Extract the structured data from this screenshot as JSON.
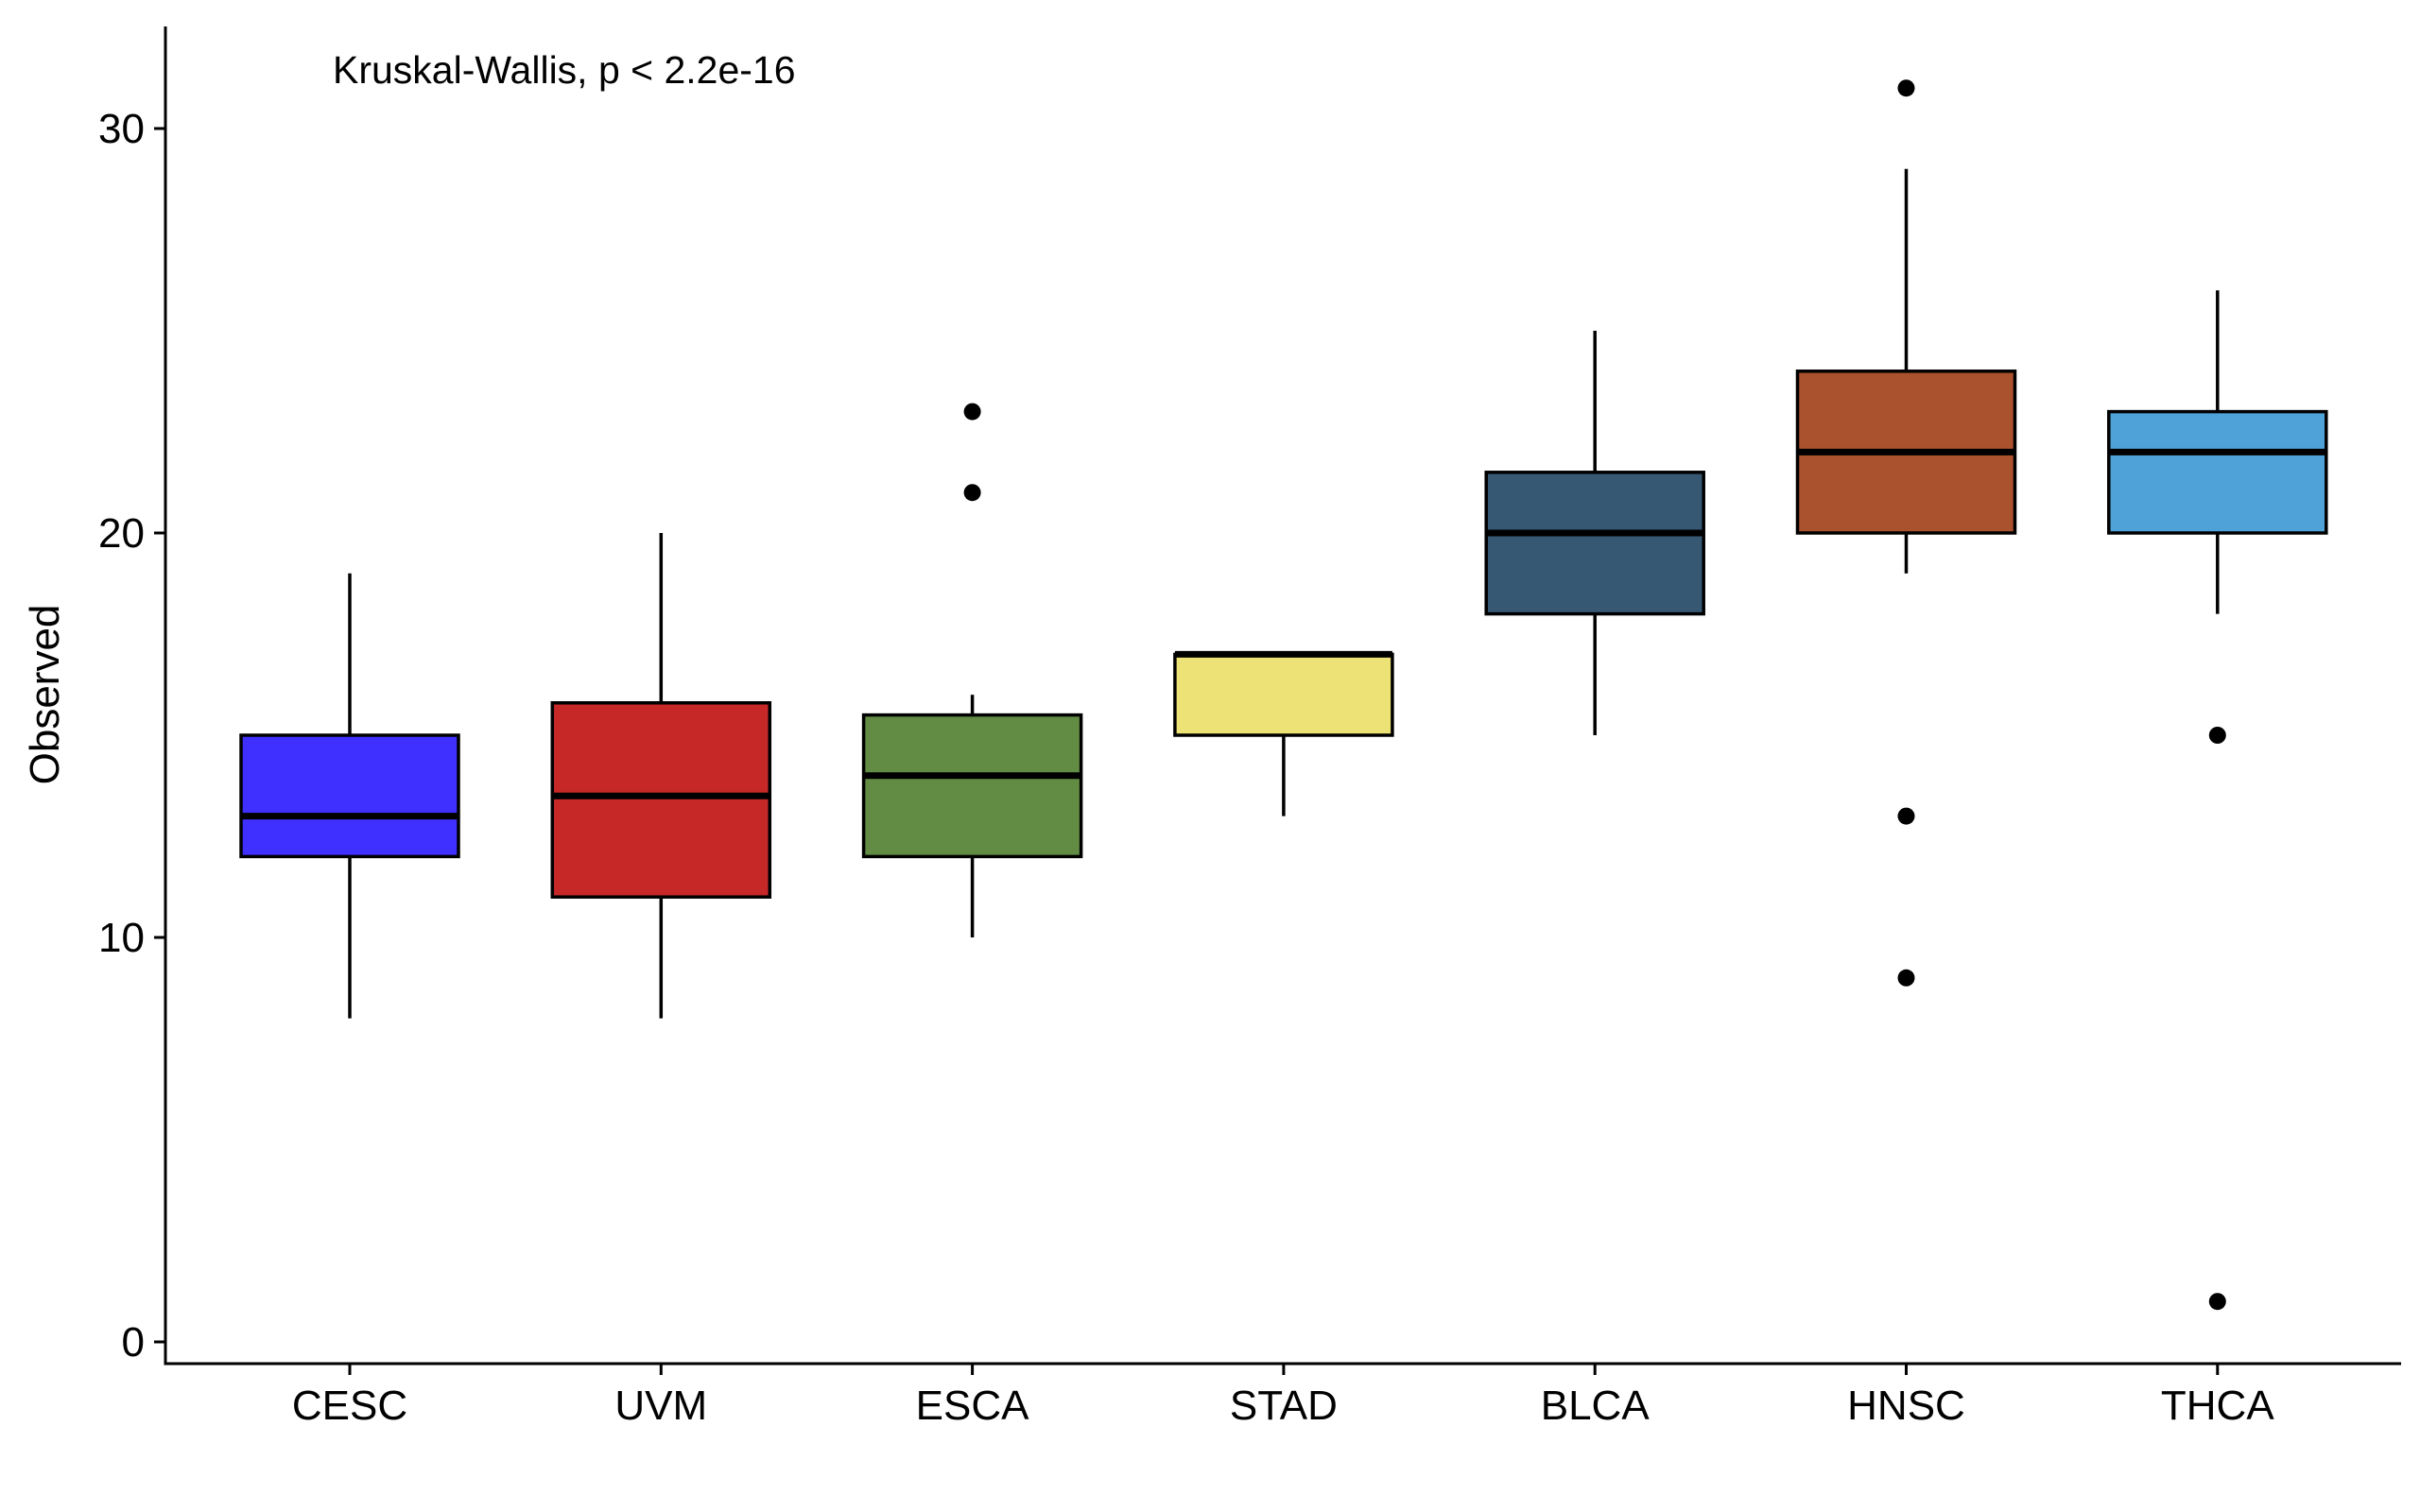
{
  "chart_data": {
    "type": "boxplot",
    "title": "",
    "xlabel": "",
    "ylabel": "Observed",
    "annotation": "Kruskal-Wallis, p < 2.2e-16",
    "ylim": [
      -0.5,
      32.5
    ],
    "yticks": [
      0,
      10,
      20,
      30
    ],
    "grid": false,
    "legend": "none",
    "categories": [
      "CESC",
      "UVM",
      "ESCA",
      "STAD",
      "BLCA",
      "HNSC",
      "THCA"
    ],
    "boxes": [
      {
        "name": "CESC",
        "color": "#4030FF",
        "whisker_low": 8,
        "q1": 12,
        "median": 13,
        "q3": 15,
        "whisker_high": 19,
        "outliers": []
      },
      {
        "name": "UVM",
        "color": "#C62828",
        "whisker_low": 8,
        "q1": 11,
        "median": 13.5,
        "q3": 15.8,
        "whisker_high": 20,
        "outliers": []
      },
      {
        "name": "ESCA",
        "color": "#628C44",
        "whisker_low": 10,
        "q1": 12,
        "median": 14,
        "q3": 15.5,
        "whisker_high": 16,
        "outliers": [
          21,
          23
        ]
      },
      {
        "name": "STAD",
        "color": "#EDE275",
        "whisker_low": 13,
        "q1": 15,
        "median": 17,
        "q3": 17,
        "whisker_high": 17,
        "outliers": []
      },
      {
        "name": "BLCA",
        "color": "#375873",
        "whisker_low": 15,
        "q1": 18,
        "median": 20,
        "q3": 21.5,
        "whisker_high": 25,
        "outliers": []
      },
      {
        "name": "HNSC",
        "color": "#AA512D",
        "whisker_low": 19,
        "q1": 20,
        "median": 22,
        "q3": 24,
        "whisker_high": 29,
        "outliers": [
          9,
          13,
          31
        ]
      },
      {
        "name": "THCA",
        "color": "#4EA2D8",
        "whisker_low": 18,
        "q1": 20,
        "median": 22,
        "q3": 23,
        "whisker_high": 26,
        "outliers": [
          1,
          15
        ]
      }
    ]
  }
}
